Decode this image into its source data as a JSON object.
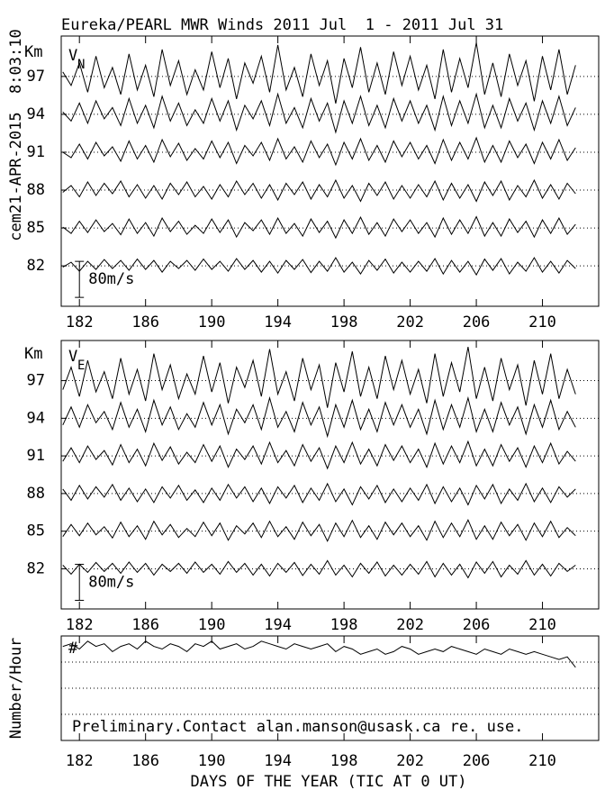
{
  "chart_data": [
    {
      "type": "line",
      "title": "Eureka/PEARL MWR Winds 2011 Jul  1 - 2011 Jul 31",
      "stamp": "cem21-APR-2015  8:03:10",
      "ylabel": "Km",
      "component": "V",
      "subscript": "N",
      "scale": {
        "value": 80,
        "label": "80m/s"
      },
      "xlim": [
        180.9,
        213.4
      ],
      "xticks": [
        182,
        186,
        190,
        194,
        198,
        202,
        206,
        210
      ],
      "ylim": [
        78.8,
        100.2
      ],
      "yticks": [
        97,
        94,
        91,
        88,
        85,
        82
      ],
      "grid": true,
      "color": "#000000",
      "x": [
        181,
        181.5,
        182,
        182.5,
        183,
        183.5,
        184,
        184.5,
        185,
        185.5,
        186,
        186.5,
        187,
        187.5,
        188,
        188.5,
        189,
        189.5,
        190,
        190.5,
        191,
        191.5,
        192,
        192.5,
        193,
        193.5,
        194,
        194.5,
        195,
        195.5,
        196,
        196.5,
        197,
        197.5,
        198,
        198.5,
        199,
        199.5,
        200,
        200.5,
        201,
        201.5,
        202,
        202.5,
        203,
        203.5,
        204,
        204.5,
        205,
        205.5,
        206,
        206.5,
        207,
        207.5,
        208,
        208.5,
        209,
        209.5,
        210,
        210.5,
        211,
        211.5,
        212
      ],
      "series": [
        {
          "altitude": 97,
          "values": [
            10,
            -20,
            30,
            -35,
            45,
            -25,
            20,
            -40,
            50,
            -30,
            25,
            -45,
            60,
            -20,
            35,
            -40,
            15,
            -30,
            55,
            -25,
            40,
            -50,
            30,
            -15,
            45,
            -35,
            70,
            -30,
            20,
            -45,
            50,
            -20,
            35,
            -60,
            40,
            -25,
            65,
            -35,
            30,
            -40,
            55,
            -20,
            45,
            -30,
            25,
            -50,
            60,
            -35,
            40,
            -25,
            75,
            -40,
            30,
            -45,
            50,
            -20,
            35,
            -55,
            45,
            -30,
            60,
            -40,
            25
          ]
        },
        {
          "altitude": 94,
          "values": [
            5,
            -15,
            25,
            -20,
            30,
            -10,
            15,
            -25,
            35,
            -20,
            20,
            -30,
            40,
            -15,
            25,
            -25,
            10,
            -20,
            35,
            -15,
            30,
            -35,
            20,
            -10,
            30,
            -25,
            45,
            -20,
            15,
            -30,
            35,
            -15,
            25,
            -40,
            30,
            -20,
            40,
            -25,
            20,
            -30,
            35,
            -15,
            30,
            -20,
            20,
            -35,
            40,
            -25,
            30,
            -20,
            45,
            -30,
            20,
            -30,
            35,
            -15,
            25,
            -35,
            30,
            -20,
            40,
            -25,
            15
          ]
        },
        {
          "altitude": 91,
          "values": [
            0,
            -12,
            18,
            -15,
            22,
            -8,
            12,
            -20,
            25,
            -15,
            15,
            -22,
            28,
            -10,
            20,
            -18,
            8,
            -15,
            25,
            -12,
            22,
            -25,
            15,
            -8,
            22,
            -18,
            30,
            -15,
            12,
            -22,
            25,
            -12,
            18,
            -28,
            22,
            -15,
            30,
            -18,
            15,
            -22,
            25,
            -10,
            22,
            -15,
            15,
            -25,
            28,
            -18,
            22,
            -15,
            32,
            -22,
            15,
            -22,
            25,
            -12,
            18,
            -25,
            22,
            -15,
            28,
            -18,
            10
          ]
        },
        {
          "altitude": 88,
          "values": [
            -5,
            10,
            -15,
            18,
            -12,
            15,
            -8,
            20,
            -15,
            12,
            -18,
            10,
            -20,
            15,
            -10,
            18,
            -15,
            8,
            -20,
            12,
            -15,
            20,
            -10,
            15,
            -18,
            12,
            -22,
            15,
            -10,
            18,
            -20,
            12,
            -15,
            22,
            -18,
            10,
            -25,
            15,
            -12,
            18,
            -20,
            10,
            -18,
            12,
            -15,
            20,
            -22,
            15,
            -18,
            12,
            -25,
            18,
            -12,
            20,
            -22,
            10,
            -15,
            22,
            -18,
            12,
            -20,
            15,
            -8
          ]
        },
        {
          "altitude": 85,
          "values": [
            2,
            -12,
            15,
            -10,
            18,
            -8,
            10,
            -15,
            20,
            -12,
            12,
            -18,
            22,
            -8,
            15,
            -14,
            6,
            -12,
            20,
            -10,
            18,
            -20,
            12,
            -6,
            18,
            -14,
            22,
            -12,
            10,
            -18,
            20,
            -10,
            15,
            -22,
            18,
            -12,
            24,
            -14,
            12,
            -18,
            20,
            -8,
            18,
            -12,
            12,
            -20,
            22,
            -14,
            18,
            -12,
            25,
            -18,
            12,
            -18,
            20,
            -10,
            15,
            -20,
            18,
            -12,
            22,
            -14,
            8
          ]
        },
        {
          "altitude": 82,
          "values": [
            -3,
            8,
            -12,
            10,
            -8,
            14,
            -6,
            12,
            -10,
            15,
            -8,
            12,
            -14,
            10,
            -6,
            12,
            -10,
            15,
            -8,
            10,
            -12,
            16,
            -8,
            12,
            -14,
            10,
            -16,
            12,
            -8,
            14,
            -15,
            10,
            -12,
            18,
            -14,
            8,
            -18,
            12,
            -10,
            15,
            -16,
            8,
            -14,
            10,
            -12,
            16,
            -18,
            12,
            -14,
            10,
            -20,
            15,
            -10,
            16,
            -18,
            8,
            -12,
            18,
            -14,
            10,
            -16,
            12,
            -6
          ]
        }
      ]
    },
    {
      "type": "line",
      "ylabel": "Km",
      "component": "V",
      "subscript": "E",
      "scale": {
        "value": 80,
        "label": "80m/s"
      },
      "xlim": [
        180.9,
        213.4
      ],
      "xticks": [
        182,
        186,
        190,
        194,
        198,
        202,
        206,
        210
      ],
      "ylim": [
        78.8,
        100.2
      ],
      "yticks": [
        97,
        94,
        91,
        88,
        85,
        82
      ],
      "grid": true,
      "color": "#000000",
      "x": [
        181,
        181.5,
        182,
        182.5,
        183,
        183.5,
        184,
        184.5,
        185,
        185.5,
        186,
        186.5,
        187,
        187.5,
        188,
        188.5,
        189,
        189.5,
        190,
        190.5,
        191,
        191.5,
        192,
        192.5,
        193,
        193.5,
        194,
        194.5,
        195,
        195.5,
        196,
        196.5,
        197,
        197.5,
        198,
        198.5,
        199,
        199.5,
        200,
        200.5,
        201,
        201.5,
        202,
        202.5,
        203,
        203.5,
        204,
        204.5,
        205,
        205.5,
        206,
        206.5,
        207,
        207.5,
        208,
        208.5,
        209,
        209.5,
        210,
        210.5,
        211,
        211.5,
        212
      ],
      "series": [
        {
          "altitude": 97,
          "values": [
            -20,
            30,
            -35,
            45,
            -25,
            20,
            -40,
            50,
            -30,
            25,
            -45,
            60,
            -20,
            35,
            -40,
            15,
            -30,
            55,
            -25,
            40,
            -50,
            30,
            -15,
            45,
            -35,
            70,
            -30,
            20,
            -45,
            50,
            -20,
            35,
            -60,
            40,
            -25,
            65,
            -35,
            30,
            -40,
            55,
            -20,
            45,
            -30,
            25,
            -50,
            60,
            -35,
            40,
            -25,
            75,
            -40,
            30,
            -45,
            50,
            -20,
            35,
            -55,
            45,
            -30,
            60,
            -40,
            25,
            -30
          ]
        },
        {
          "altitude": 94,
          "values": [
            -15,
            25,
            -20,
            30,
            -10,
            15,
            -25,
            35,
            -20,
            20,
            -30,
            40,
            -15,
            25,
            -25,
            10,
            -20,
            35,
            -15,
            30,
            -35,
            20,
            -10,
            30,
            -25,
            45,
            -20,
            15,
            -30,
            35,
            -15,
            25,
            -40,
            30,
            -20,
            40,
            -25,
            20,
            -30,
            35,
            -15,
            30,
            -20,
            20,
            -35,
            40,
            -25,
            30,
            -20,
            45,
            -30,
            20,
            -30,
            35,
            -15,
            25,
            -35,
            30,
            -20,
            40,
            -25,
            15,
            -20
          ]
        },
        {
          "altitude": 91,
          "values": [
            -12,
            18,
            -15,
            22,
            -8,
            12,
            -20,
            25,
            -15,
            15,
            -22,
            28,
            -10,
            20,
            -18,
            8,
            -15,
            25,
            -12,
            22,
            -25,
            15,
            -8,
            22,
            -18,
            30,
            -15,
            12,
            -22,
            25,
            -12,
            18,
            -28,
            22,
            -15,
            30,
            -18,
            15,
            -22,
            25,
            -10,
            22,
            -15,
            15,
            -25,
            28,
            -18,
            22,
            -15,
            32,
            -22,
            15,
            -22,
            25,
            -12,
            18,
            -25,
            22,
            -15,
            28,
            -18,
            10,
            -12
          ]
        },
        {
          "altitude": 88,
          "values": [
            10,
            -15,
            18,
            -12,
            15,
            -8,
            20,
            -15,
            12,
            -18,
            10,
            -20,
            15,
            -10,
            18,
            -15,
            8,
            -20,
            12,
            -15,
            20,
            -10,
            15,
            -18,
            12,
            -22,
            15,
            -10,
            18,
            -20,
            12,
            -15,
            22,
            -18,
            10,
            -25,
            15,
            -12,
            18,
            -20,
            10,
            -18,
            12,
            -15,
            20,
            -22,
            15,
            -18,
            12,
            -25,
            18,
            -12,
            20,
            -22,
            10,
            -15,
            22,
            -18,
            12,
            -20,
            15,
            -8,
            10
          ]
        },
        {
          "altitude": 85,
          "values": [
            -12,
            15,
            -10,
            18,
            -8,
            10,
            -15,
            20,
            -12,
            12,
            -18,
            22,
            -8,
            15,
            -14,
            6,
            -12,
            20,
            -10,
            18,
            -20,
            12,
            -6,
            18,
            -14,
            22,
            -12,
            10,
            -18,
            20,
            -10,
            15,
            -22,
            18,
            -12,
            24,
            -14,
            12,
            -18,
            20,
            -8,
            18,
            -12,
            12,
            -20,
            22,
            -14,
            18,
            -12,
            25,
            -18,
            12,
            -18,
            20,
            -10,
            15,
            -20,
            18,
            -12,
            22,
            -14,
            8,
            -10
          ]
        },
        {
          "altitude": 82,
          "values": [
            8,
            -12,
            10,
            -8,
            14,
            -6,
            12,
            -10,
            15,
            -8,
            12,
            -14,
            10,
            -6,
            12,
            -10,
            15,
            -8,
            10,
            -12,
            16,
            -8,
            12,
            -14,
            10,
            -16,
            12,
            -8,
            14,
            -15,
            10,
            -12,
            18,
            -14,
            8,
            -18,
            12,
            -10,
            15,
            -16,
            8,
            -14,
            10,
            -12,
            16,
            -18,
            12,
            -14,
            10,
            -20,
            15,
            -10,
            16,
            -18,
            8,
            -12,
            18,
            -14,
            10,
            -16,
            12,
            -6,
            8
          ]
        }
      ]
    },
    {
      "type": "line",
      "ylabel": "Number/Hour",
      "marker": "#",
      "note": "Preliminary.Contact alan.manson@usask.ca re. use.",
      "xlabel": "DAYS OF THE YEAR (TIC AT 0 UT)",
      "xlim": [
        180.9,
        213.4
      ],
      "xticks": [
        182,
        186,
        190,
        194,
        198,
        202,
        206,
        210
      ],
      "ylim": [
        0,
        40
      ],
      "grid_levels": [
        30,
        20,
        10
      ],
      "color": "#000000",
      "x": [
        181,
        181.5,
        182,
        182.5,
        183,
        183.5,
        184,
        184.5,
        185,
        185.5,
        186,
        186.5,
        187,
        187.5,
        188,
        188.5,
        189,
        189.5,
        190,
        190.5,
        191,
        191.5,
        192,
        192.5,
        193,
        193.5,
        194,
        194.5,
        195,
        195.5,
        196,
        196.5,
        197,
        197.5,
        198,
        198.5,
        199,
        199.5,
        200,
        200.5,
        201,
        201.5,
        202,
        202.5,
        203,
        203.5,
        204,
        204.5,
        205,
        205.5,
        206,
        206.5,
        207,
        207.5,
        208,
        208.5,
        209,
        209.5,
        210,
        210.5,
        211,
        211.5,
        212
      ],
      "series": [
        {
          "values": [
            36,
            37,
            35,
            38,
            36,
            37,
            34,
            36,
            37,
            35,
            38,
            36,
            35,
            37,
            36,
            34,
            37,
            36,
            38,
            35,
            36,
            37,
            35,
            36,
            38,
            37,
            36,
            35,
            37,
            36,
            35,
            36,
            37,
            34,
            36,
            35,
            33,
            34,
            35,
            33,
            34,
            36,
            35,
            33,
            34,
            35,
            34,
            36,
            35,
            34,
            33,
            35,
            34,
            33,
            35,
            34,
            33,
            34,
            33,
            32,
            31,
            32,
            28
          ]
        }
      ]
    }
  ]
}
